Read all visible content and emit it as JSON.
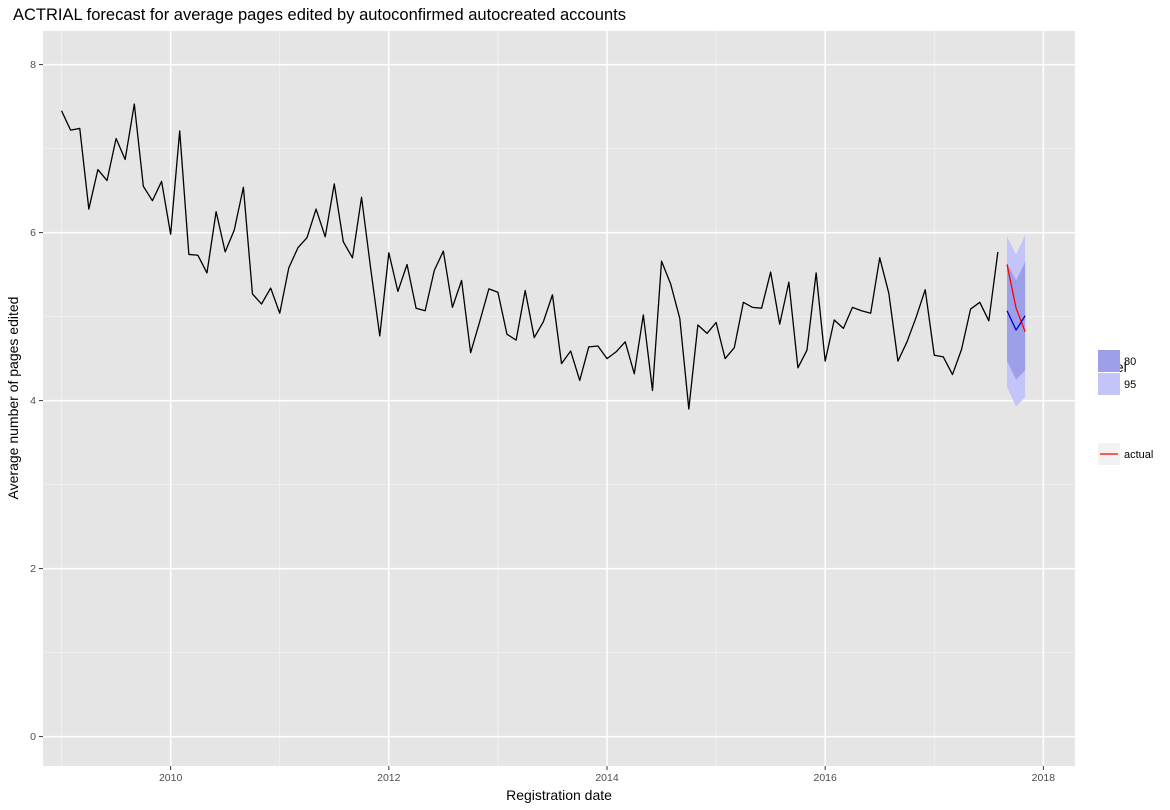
{
  "chart_data": {
    "type": "line",
    "title": "ACTRIAL forecast for average pages edited by autoconfirmed autocreated accounts",
    "xlabel": "Registration date",
    "ylabel": "Average number of pages edited",
    "xlim": [
      2008.83,
      2018.29
    ],
    "ylim": [
      -0.35,
      8.4
    ],
    "x_ticks": [
      2010,
      2012,
      2014,
      2016,
      2018
    ],
    "y_ticks": [
      0,
      2,
      4,
      6,
      8
    ],
    "grid": true,
    "legend_position": "right",
    "series": [
      {
        "name": "",
        "color": "#000000",
        "x": [
          2009.0,
          2009.083,
          2009.167,
          2009.25,
          2009.333,
          2009.417,
          2009.5,
          2009.583,
          2009.667,
          2009.75,
          2009.833,
          2009.917,
          2010.0,
          2010.083,
          2010.167,
          2010.25,
          2010.333,
          2010.417,
          2010.5,
          2010.583,
          2010.667,
          2010.75,
          2010.833,
          2010.917,
          2011.0,
          2011.083,
          2011.167,
          2011.25,
          2011.333,
          2011.417,
          2011.5,
          2011.583,
          2011.667,
          2011.75,
          2011.833,
          2011.917,
          2012.0,
          2012.083,
          2012.167,
          2012.25,
          2012.333,
          2012.417,
          2012.5,
          2012.583,
          2012.667,
          2012.75,
          2012.833,
          2012.917,
          2013.0,
          2013.083,
          2013.167,
          2013.25,
          2013.333,
          2013.417,
          2013.5,
          2013.583,
          2013.667,
          2013.75,
          2013.833,
          2013.917,
          2014.0,
          2014.083,
          2014.167,
          2014.25,
          2014.333,
          2014.417,
          2014.5,
          2014.583,
          2014.667,
          2014.75,
          2014.833,
          2014.917,
          2015.0,
          2015.083,
          2015.167,
          2015.25,
          2015.333,
          2015.417,
          2015.5,
          2015.583,
          2015.667,
          2015.75,
          2015.833,
          2015.917,
          2016.0,
          2016.083,
          2016.167,
          2016.25,
          2016.333,
          2016.417,
          2016.5,
          2016.583,
          2016.667,
          2016.75,
          2016.833,
          2016.917,
          2017.0,
          2017.083,
          2017.167,
          2017.25,
          2017.333,
          2017.417,
          2017.5,
          2017.583
        ],
        "values": [
          7.45,
          7.22,
          7.24,
          6.28,
          6.75,
          6.62,
          7.12,
          6.87,
          7.53,
          6.55,
          6.38,
          6.61,
          5.98,
          7.21,
          5.74,
          5.73,
          5.52,
          6.25,
          5.77,
          6.03,
          6.54,
          5.27,
          5.15,
          5.34,
          5.04,
          5.58,
          5.82,
          5.94,
          6.28,
          5.95,
          6.58,
          5.89,
          5.7,
          6.42,
          5.58,
          4.77,
          5.76,
          5.3,
          5.62,
          5.1,
          5.07,
          5.55,
          5.78,
          5.11,
          5.43,
          4.57,
          4.94,
          5.33,
          5.29,
          4.79,
          4.72,
          5.31,
          4.75,
          4.94,
          5.26,
          4.44,
          4.59,
          4.24,
          4.64,
          4.65,
          4.5,
          4.58,
          4.7,
          4.32,
          5.02,
          4.12,
          5.66,
          5.39,
          4.98,
          3.9,
          4.9,
          4.8,
          4.93,
          4.5,
          4.63,
          5.17,
          5.11,
          5.1,
          5.53,
          4.91,
          5.41,
          4.39,
          4.6,
          5.52,
          4.47,
          4.96,
          4.86,
          5.11,
          5.07,
          5.04,
          5.7,
          5.28,
          4.47,
          4.7,
          4.99,
          5.32,
          4.54,
          4.52,
          4.31,
          4.61,
          5.09,
          5.17,
          4.95,
          5.77
        ]
      },
      {
        "name": "actual",
        "color": "#ff0000",
        "x": [
          2017.667,
          2017.75,
          2017.833
        ],
        "values": [
          5.62,
          5.1,
          4.82
        ]
      },
      {
        "name": "",
        "color": "#0000cc",
        "x": [
          2017.667,
          2017.75,
          2017.833
        ],
        "values": [
          5.07,
          4.84,
          5.01
        ]
      }
    ],
    "intervals": [
      {
        "level": "95",
        "color": "#c3c4f7",
        "x": [
          2017.667,
          2017.75,
          2017.833
        ],
        "lower": [
          4.16,
          3.93,
          4.04
        ],
        "upper": [
          5.95,
          5.74,
          5.97
        ]
      },
      {
        "level": "80",
        "color": "#9e9fe9",
        "x": [
          2017.667,
          2017.75,
          2017.833
        ],
        "lower": [
          4.47,
          4.25,
          4.36
        ],
        "upper": [
          5.64,
          5.43,
          5.65
        ]
      }
    ],
    "legend": {
      "title": "level",
      "items": [
        {
          "label": "80",
          "color": "#9e9fe9",
          "kind": "fill"
        },
        {
          "label": "95",
          "color": "#c3c4f7",
          "kind": "fill"
        },
        {
          "label": "actual",
          "color": "#ff0000",
          "kind": "line"
        }
      ]
    }
  }
}
